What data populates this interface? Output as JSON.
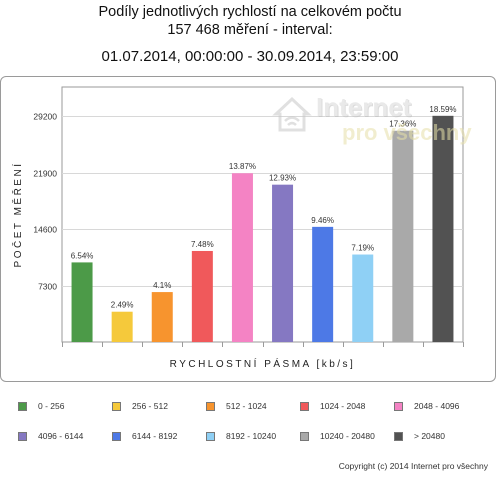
{
  "header": {
    "title_line1": "Podíly jednotlivých rychlostí na celkovém počtu",
    "title_line2": "157 468 měření - interval:",
    "interval": "01.07.2014, 00:00:00 - 30.09.2014, 23:59:00"
  },
  "watermark": {
    "line1": "Internet",
    "line2": "pro všechny"
  },
  "chart_data": {
    "type": "bar",
    "title": "Podíly jednotlivých rychlostí na celkovém počtu",
    "xlabel": "RYCHLOSTNÍ PÁSMA [kb/s]",
    "ylabel": "POČET MĚŘENÍ",
    "ylim": [
      0,
      33000
    ],
    "yticks": [
      7300,
      14600,
      21900,
      29200
    ],
    "grid": true,
    "legend_position": "bottom",
    "categories": [
      "0 - 256",
      "256 - 512",
      "512 - 1024",
      "1024 - 2048",
      "2048 - 4096",
      "4096 - 6144",
      "6144 - 8192",
      "8192 - 10240",
      "10240 - 20480",
      "> 20480"
    ],
    "values": [
      10300,
      3920,
      6460,
      11780,
      21840,
      20360,
      14900,
      11320,
      27340,
      29270
    ],
    "labels": [
      "6.54%",
      "2.49%",
      "4.1%",
      "7.48%",
      "13.87%",
      "12.93%",
      "9.46%",
      "7.19%",
      "17.36%",
      "18.59%"
    ],
    "colors": [
      "#4c9a48",
      "#f5c93b",
      "#f7942e",
      "#f0595b",
      "#f483c4",
      "#8578c2",
      "#4d79e6",
      "#8fd0f5",
      "#a9a9a9",
      "#525252"
    ]
  },
  "footer": {
    "copyright": "Copyright (c) 2014 Internet pro všechny"
  }
}
